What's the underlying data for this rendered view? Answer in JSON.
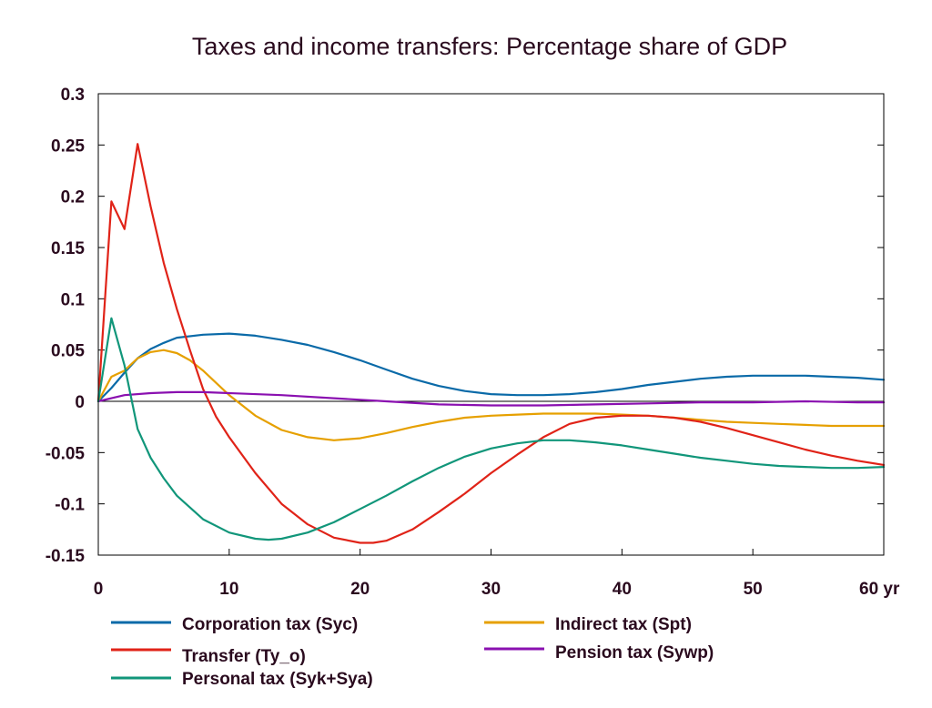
{
  "chart_data": {
    "type": "line",
    "title": "Taxes and income transfers: Percentage share of GDP",
    "xlim": [
      0,
      60
    ],
    "ylim": [
      -0.15,
      0.3
    ],
    "x_ticks": [
      0,
      10,
      20,
      30,
      40,
      50,
      60
    ],
    "x_tick_labels": [
      "0",
      "10",
      "20",
      "30",
      "40",
      "50",
      "60 yr"
    ],
    "y_ticks": [
      0.3,
      0.25,
      0.2,
      0.15,
      0.1,
      0.05,
      0,
      -0.05,
      -0.1,
      -0.15
    ],
    "y_tick_labels": [
      "0.3",
      "0.25",
      "0.2",
      "0.15",
      "0.1",
      "0.05",
      "0",
      "-0.05",
      "-0.1",
      "-0.15"
    ],
    "grid": false,
    "legend_position": "bottom",
    "series": [
      {
        "name": "Corporation tax (Syc)",
        "color": "#0a6aa8",
        "x": [
          0,
          1,
          2,
          3,
          4,
          5,
          6,
          8,
          10,
          12,
          14,
          16,
          18,
          20,
          22,
          24,
          26,
          28,
          30,
          32,
          34,
          36,
          38,
          40,
          42,
          44,
          46,
          48,
          50,
          52,
          54,
          56,
          58,
          60
        ],
        "y": [
          0,
          0.013,
          0.028,
          0.042,
          0.051,
          0.057,
          0.062,
          0.065,
          0.066,
          0.064,
          0.06,
          0.055,
          0.048,
          0.04,
          0.031,
          0.022,
          0.015,
          0.01,
          0.007,
          0.006,
          0.006,
          0.007,
          0.009,
          0.012,
          0.016,
          0.019,
          0.022,
          0.024,
          0.025,
          0.025,
          0.025,
          0.024,
          0.023,
          0.021
        ]
      },
      {
        "name": "Indirect tax (Spt)",
        "color": "#e6a000",
        "x": [
          0,
          1,
          2,
          3,
          4,
          5,
          6,
          7,
          8,
          9,
          10,
          12,
          14,
          16,
          18,
          20,
          22,
          24,
          26,
          28,
          30,
          32,
          34,
          36,
          38,
          40,
          42,
          44,
          46,
          48,
          50,
          52,
          54,
          56,
          58,
          60
        ],
        "y": [
          0,
          0.024,
          0.03,
          0.042,
          0.048,
          0.05,
          0.047,
          0.04,
          0.03,
          0.018,
          0.006,
          -0.014,
          -0.028,
          -0.035,
          -0.038,
          -0.036,
          -0.031,
          -0.025,
          -0.02,
          -0.016,
          -0.014,
          -0.013,
          -0.012,
          -0.012,
          -0.012,
          -0.013,
          -0.014,
          -0.016,
          -0.018,
          -0.02,
          -0.021,
          -0.022,
          -0.023,
          -0.024,
          -0.024,
          -0.024
        ]
      },
      {
        "name": "Transfer (Ty_o)",
        "color": "#e02318",
        "x": [
          0,
          1,
          2,
          3,
          4,
          5,
          6,
          7,
          8,
          9,
          10,
          12,
          14,
          16,
          18,
          20,
          21,
          22,
          24,
          26,
          28,
          30,
          32,
          34,
          36,
          38,
          40,
          42,
          44,
          46,
          48,
          50,
          52,
          54,
          56,
          58,
          60
        ],
        "y": [
          0,
          0.195,
          0.168,
          0.251,
          0.19,
          0.135,
          0.09,
          0.05,
          0.012,
          -0.015,
          -0.035,
          -0.07,
          -0.1,
          -0.12,
          -0.133,
          -0.138,
          -0.138,
          -0.136,
          -0.125,
          -0.108,
          -0.09,
          -0.07,
          -0.052,
          -0.035,
          -0.022,
          -0.016,
          -0.014,
          -0.014,
          -0.016,
          -0.02,
          -0.026,
          -0.033,
          -0.04,
          -0.047,
          -0.053,
          -0.058,
          -0.062
        ]
      },
      {
        "name": "Pension tax (Sywp)",
        "color": "#8a10b0",
        "x": [
          0,
          2,
          4,
          6,
          8,
          10,
          14,
          18,
          22,
          26,
          30,
          34,
          38,
          42,
          46,
          50,
          54,
          58,
          60
        ],
        "y": [
          0,
          0.006,
          0.008,
          0.009,
          0.009,
          0.008,
          0.006,
          0.003,
          0.0,
          -0.003,
          -0.004,
          -0.004,
          -0.003,
          -0.002,
          -0.001,
          -0.001,
          0.0,
          -0.001,
          -0.001
        ]
      },
      {
        "name": "Personal tax (Syk+Sya)",
        "color": "#11967a",
        "x": [
          0,
          1,
          2,
          3,
          4,
          5,
          6,
          8,
          10,
          12,
          13,
          14,
          16,
          18,
          20,
          22,
          24,
          26,
          28,
          30,
          32,
          34,
          36,
          38,
          40,
          42,
          44,
          46,
          48,
          50,
          52,
          54,
          56,
          58,
          60
        ],
        "y": [
          0,
          0.081,
          0.035,
          -0.027,
          -0.055,
          -0.075,
          -0.092,
          -0.115,
          -0.128,
          -0.134,
          -0.135,
          -0.134,
          -0.128,
          -0.118,
          -0.105,
          -0.092,
          -0.078,
          -0.065,
          -0.054,
          -0.046,
          -0.041,
          -0.038,
          -0.038,
          -0.04,
          -0.043,
          -0.047,
          -0.051,
          -0.055,
          -0.058,
          -0.061,
          -0.063,
          -0.064,
          -0.065,
          -0.065,
          -0.064
        ]
      }
    ]
  },
  "legend": [
    {
      "label": "Corporation tax (Syc)",
      "color": "#0a6aa8"
    },
    {
      "label": "Indirect tax (Spt)",
      "color": "#e6a000"
    },
    {
      "label": "Transfer (Ty_o)",
      "color": "#e02318"
    },
    {
      "label": "Pension tax (Sywp)",
      "color": "#8a10b0"
    },
    {
      "label": "Personal tax (Syk+Sya)",
      "color": "#11967a"
    }
  ]
}
